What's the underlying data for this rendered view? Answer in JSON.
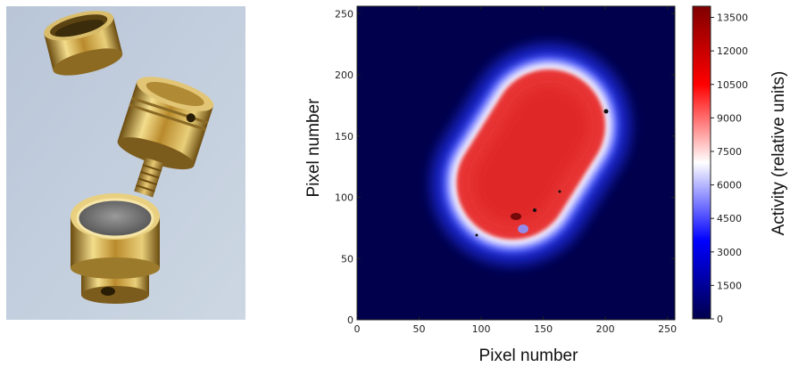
{
  "photo": {
    "icon": "brass-capsule-parts-photo"
  },
  "chart_data": {
    "type": "heatmap",
    "title": "",
    "xlabel": "Pixel number",
    "ylabel": "Pixel number",
    "xlim": [
      0,
      256
    ],
    "ylim": [
      0,
      256
    ],
    "xticks": [
      "0",
      "50",
      "100",
      "150",
      "200",
      "250"
    ],
    "yticks": [
      "0",
      "50",
      "100",
      "150",
      "200",
      "250"
    ],
    "grid": false,
    "colorbar": {
      "label": "Activity (relative units)",
      "range": [
        0,
        14000
      ],
      "ticks": [
        "0",
        "1500",
        "3000",
        "4500",
        "6000",
        "7500",
        "9000",
        "10500",
        "12000",
        "13500"
      ],
      "colormap": "seismic",
      "colors": {
        "low": "#00004c",
        "mid": "#ffffff",
        "high": "#800000"
      }
    },
    "hotspot": {
      "shape": "rounded-rectangle (stadium)",
      "center": [
        140,
        135
      ],
      "length": 150,
      "width": 95,
      "angle_deg": 58,
      "peak_activity": 10500,
      "background_activity": 0
    }
  }
}
